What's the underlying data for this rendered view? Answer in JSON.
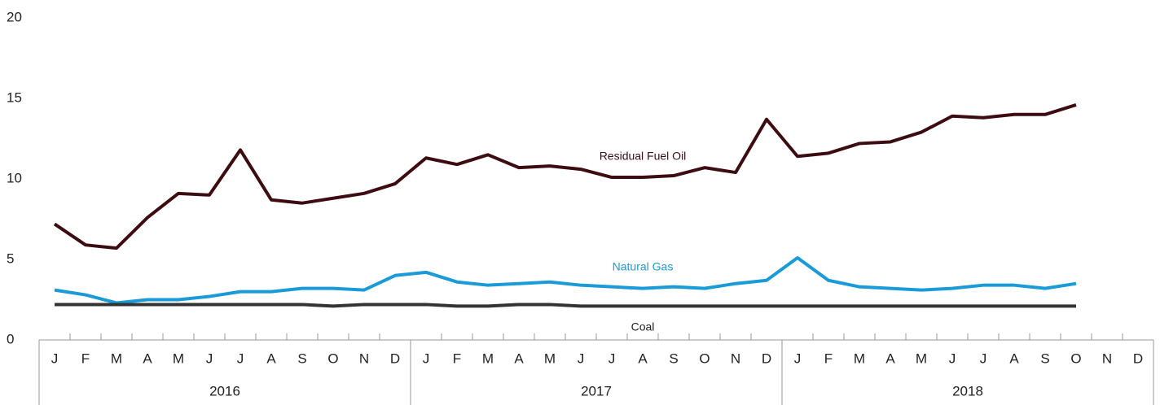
{
  "chart_data": {
    "type": "line",
    "categories": [
      "J",
      "F",
      "M",
      "A",
      "M",
      "J",
      "J",
      "A",
      "S",
      "O",
      "N",
      "D",
      "J",
      "F",
      "M",
      "A",
      "M",
      "J",
      "J",
      "A",
      "S",
      "O",
      "N",
      "D",
      "J",
      "F",
      "M",
      "A",
      "M",
      "J",
      "J",
      "A",
      "S",
      "O",
      "N",
      "D"
    ],
    "years": [
      "2016",
      "2017",
      "2018"
    ],
    "series": [
      {
        "name": "Residual Fuel Oil",
        "color": "#3d0c11",
        "values": [
          7.2,
          5.9,
          5.7,
          7.6,
          9.1,
          9.0,
          11.8,
          8.7,
          8.5,
          8.8,
          9.1,
          9.7,
          11.3,
          10.9,
          11.5,
          10.7,
          10.8,
          10.6,
          10.1,
          10.1,
          10.2,
          10.7,
          10.4,
          13.7,
          11.4,
          11.6,
          12.2,
          12.3,
          12.9,
          13.9,
          13.8,
          14.0,
          14.0,
          14.6,
          null,
          null
        ]
      },
      {
        "name": "Natural Gas",
        "color": "#1a9bd7",
        "values": [
          3.1,
          2.8,
          2.3,
          2.5,
          2.5,
          2.7,
          3.0,
          3.0,
          3.2,
          3.2,
          3.1,
          4.0,
          4.2,
          3.6,
          3.4,
          3.5,
          3.6,
          3.4,
          3.3,
          3.2,
          3.3,
          3.2,
          3.5,
          3.7,
          5.1,
          3.7,
          3.3,
          3.2,
          3.1,
          3.2,
          3.4,
          3.4,
          3.2,
          3.5,
          null,
          null
        ]
      },
      {
        "name": "Coal",
        "color": "#333333",
        "values": [
          2.2,
          2.2,
          2.2,
          2.2,
          2.2,
          2.2,
          2.2,
          2.2,
          2.2,
          2.1,
          2.2,
          2.2,
          2.2,
          2.1,
          2.1,
          2.2,
          2.2,
          2.1,
          2.1,
          2.1,
          2.1,
          2.1,
          2.1,
          2.1,
          2.1,
          2.1,
          2.1,
          2.1,
          2.1,
          2.1,
          2.1,
          2.1,
          2.1,
          2.1,
          null,
          null
        ]
      }
    ],
    "ylim": [
      0,
      20
    ],
    "yticks": [
      0,
      5,
      10,
      15,
      20
    ]
  }
}
